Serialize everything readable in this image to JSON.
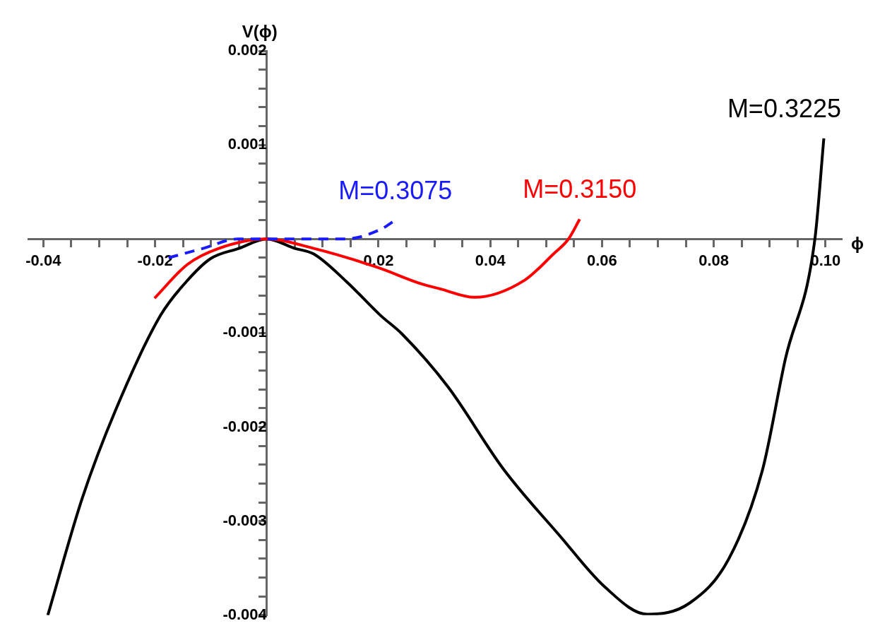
{
  "chart_data": {
    "type": "line",
    "xlabel": "ϕ",
    "ylabel": "V(ϕ)",
    "marker": "none",
    "grid": false,
    "legend": false,
    "xlim": [
      -0.0427,
      0.1028
    ],
    "ylim": [
      -0.004,
      0.002
    ],
    "xticks": [
      -0.04,
      {
        "value": -0.035,
        "label": null
      },
      {
        "value": -0.03,
        "label": null
      },
      {
        "value": -0.025,
        "label": null
      },
      -0.02,
      {
        "value": -0.015,
        "label": null
      },
      {
        "value": -0.01,
        "label": null
      },
      {
        "value": -0.005,
        "label": null
      },
      {
        "value": 0.005,
        "label": null
      },
      {
        "value": 0.01,
        "label": null
      },
      {
        "value": 0.015,
        "label": null
      },
      0.02,
      {
        "value": 0.025,
        "label": null
      },
      {
        "value": 0.03,
        "label": null
      },
      {
        "value": 0.035,
        "label": null
      },
      0.04,
      {
        "value": 0.045,
        "label": null
      },
      {
        "value": 0.05,
        "label": null
      },
      {
        "value": 0.055,
        "label": null
      },
      0.06,
      {
        "value": 0.065,
        "label": null
      },
      {
        "value": 0.07,
        "label": null
      },
      {
        "value": 0.075,
        "label": null
      },
      0.08,
      {
        "value": 0.085,
        "label": null
      },
      {
        "value": 0.09,
        "label": null
      },
      {
        "value": 0.095,
        "label": null
      },
      {
        "value": 0.1,
        "label": "0.10"
      }
    ],
    "yticks": [
      -0.004,
      {
        "value": -0.0038,
        "label": null
      },
      {
        "value": -0.0036,
        "label": null
      },
      {
        "value": -0.0034,
        "label": null
      },
      {
        "value": -0.0032,
        "label": null
      },
      -0.003,
      {
        "value": -0.0028,
        "label": null
      },
      {
        "value": -0.0026,
        "label": null
      },
      {
        "value": -0.0024,
        "label": null
      },
      {
        "value": -0.0022,
        "label": null
      },
      -0.002,
      {
        "value": -0.0018,
        "label": null
      },
      {
        "value": -0.0016,
        "label": null
      },
      {
        "value": -0.0014,
        "label": null
      },
      {
        "value": -0.0012,
        "label": null
      },
      -0.001,
      {
        "value": -0.0008,
        "label": null
      },
      {
        "value": -0.0006,
        "label": null
      },
      {
        "value": -0.0004,
        "label": null
      },
      {
        "value": -0.0002,
        "label": null
      },
      {
        "value": 0.0002,
        "label": null
      },
      {
        "value": 0.0004,
        "label": null
      },
      {
        "value": 0.0006,
        "label": null
      },
      {
        "value": 0.0008,
        "label": null
      },
      0.001,
      {
        "value": 0.0012,
        "label": null
      },
      {
        "value": 0.0014,
        "label": null
      },
      {
        "value": 0.0016,
        "label": null
      },
      {
        "value": 0.0018,
        "label": null
      },
      0.002
    ],
    "series": [
      {
        "name": "M=0.3075",
        "color": "#1a1aff",
        "line_style": "dashed",
        "x": [
          -0.0176,
          -0.0114,
          -0.0052,
          0,
          0.0084,
          0.014,
          0.0203,
          0.023
        ],
        "values": [
          -0.0002,
          -0.0001,
          0,
          0,
          0,
          0,
          0.0001,
          0.0002
        ]
      },
      {
        "name": "M=0.3150",
        "color": "#ff0000",
        "line_style": "solid",
        "x": [
          -0.0201,
          -0.0142,
          -0.0086,
          0,
          0.0084,
          0.0197,
          0.0278,
          0.031,
          0.0372,
          0.0461,
          0.0513,
          0.054,
          0.056
        ],
        "values": [
          -0.00063,
          -0.00027,
          -0.0001,
          0,
          -0.0001,
          -0.0003,
          -0.00048,
          -0.00053,
          -0.00062,
          -0.00044,
          -0.00016,
          0,
          0.00021
        ]
      },
      {
        "name": "M=0.3225",
        "color": "#000000",
        "line_style": "solid",
        "x": [
          -0.0392,
          -0.033,
          -0.027,
          -0.019,
          -0.0145,
          -0.0101,
          -0.005,
          0,
          0.005,
          0.0084,
          0.0142,
          0.0203,
          0.0242,
          0.0324,
          0.0424,
          0.0525,
          0.0605,
          0.0681,
          0.0757,
          0.0827,
          0.0887,
          0.0928,
          0.0981,
          0.0997
        ],
        "values": [
          -0.004,
          -0.00275,
          -0.00181,
          -0.00081,
          -0.00046,
          -0.00021,
          -0.0001,
          0,
          -0.0001,
          -0.00016,
          -0.00045,
          -0.00081,
          -0.00101,
          -0.00157,
          -0.00245,
          -0.00316,
          -0.0037,
          -0.00399,
          -0.00387,
          -0.0034,
          -0.00246,
          -0.00128,
          0,
          0.00107
        ]
      }
    ]
  }
}
